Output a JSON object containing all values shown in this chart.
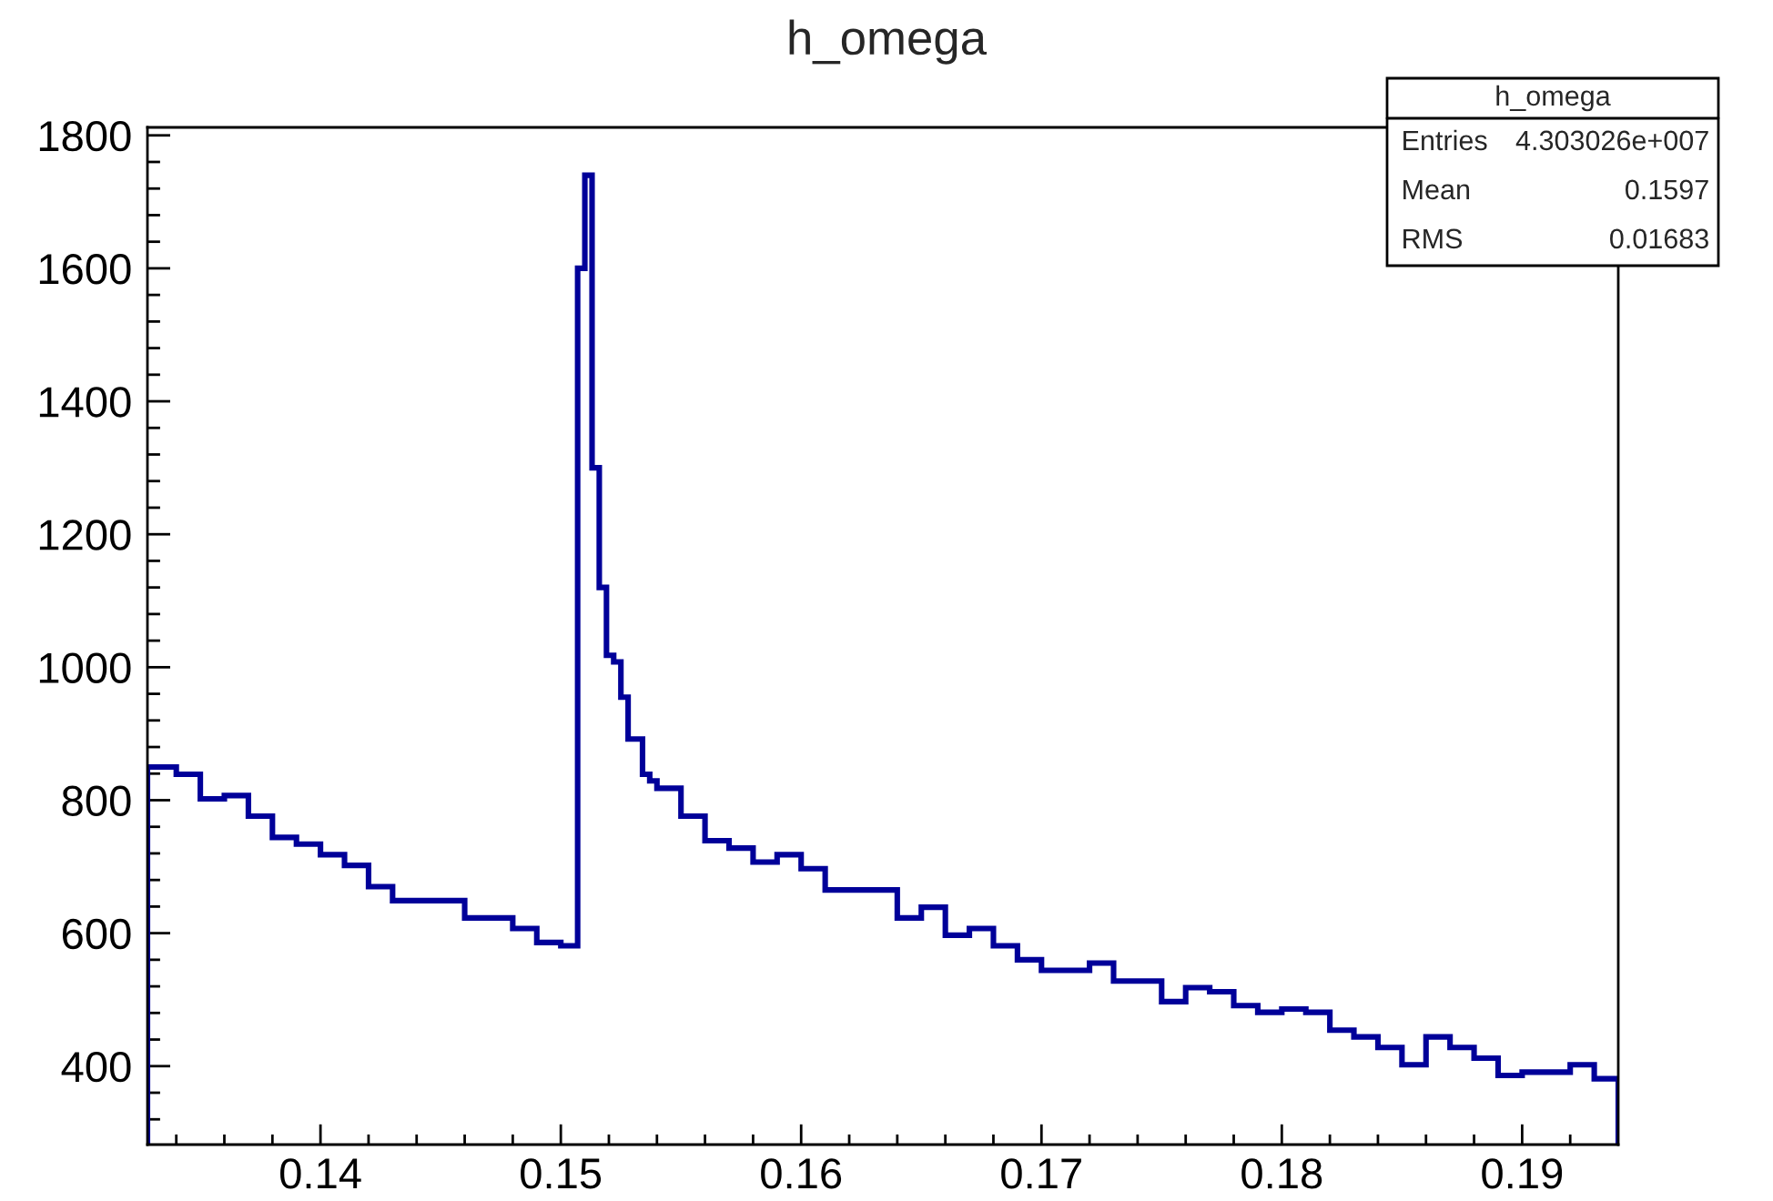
{
  "chart_data": {
    "type": "histogram",
    "title": "h_omega",
    "bins": [
      0.1328,
      0.134,
      0.135,
      0.136,
      0.137,
      0.138,
      0.139,
      0.14,
      0.141,
      0.142,
      0.143,
      0.144,
      0.145,
      0.146,
      0.147,
      0.148,
      0.149,
      0.15,
      0.1507,
      0.151,
      0.1513,
      0.1516,
      0.1519,
      0.1522,
      0.1525,
      0.1528,
      0.1531,
      0.1534,
      0.1537,
      0.154,
      0.155,
      0.156,
      0.157,
      0.158,
      0.159,
      0.16,
      0.161,
      0.162,
      0.163,
      0.164,
      0.165,
      0.166,
      0.167,
      0.168,
      0.169,
      0.17,
      0.171,
      0.172,
      0.173,
      0.174,
      0.175,
      0.176,
      0.177,
      0.178,
      0.179,
      0.18,
      0.181,
      0.182,
      0.183,
      0.184,
      0.185,
      0.186,
      0.187,
      0.188,
      0.189,
      0.19,
      0.191,
      0.192,
      0.193,
      0.194
    ],
    "values": [
      850,
      839,
      802,
      807,
      776,
      744,
      734,
      718,
      702,
      670,
      649,
      649,
      649,
      623,
      623,
      607,
      586,
      581,
      1600,
      1740,
      1300,
      1120,
      1018,
      1008,
      955,
      892,
      892,
      839,
      829,
      818,
      776,
      739,
      728,
      707,
      718,
      697,
      665,
      665,
      665,
      623,
      639,
      597,
      607,
      581,
      560,
      544,
      544,
      555,
      528,
      528,
      497,
      518,
      512,
      491,
      481,
      486,
      481,
      454,
      444,
      428,
      402,
      444,
      428,
      412,
      386,
      391,
      391,
      402,
      381
    ],
    "color": "#000099",
    "xlim": [
      0.1328,
      0.194
    ],
    "ylim": [
      282,
      1812
    ],
    "xticks": [
      {
        "value": 0.134,
        "label": null
      },
      {
        "value": 0.136,
        "label": null
      },
      {
        "value": 0.138,
        "label": null
      },
      0.14,
      {
        "value": 0.142,
        "label": null
      },
      {
        "value": 0.144,
        "label": null
      },
      {
        "value": 0.146,
        "label": null
      },
      {
        "value": 0.148,
        "label": null
      },
      0.15,
      {
        "value": 0.152,
        "label": null
      },
      {
        "value": 0.154,
        "label": null
      },
      {
        "value": 0.156,
        "label": null
      },
      {
        "value": 0.158,
        "label": null
      },
      0.16,
      {
        "value": 0.162,
        "label": null
      },
      {
        "value": 0.164,
        "label": null
      },
      {
        "value": 0.166,
        "label": null
      },
      {
        "value": 0.168,
        "label": null
      },
      0.17,
      {
        "value": 0.172,
        "label": null
      },
      {
        "value": 0.174,
        "label": null
      },
      {
        "value": 0.176,
        "label": null
      },
      {
        "value": 0.178,
        "label": null
      },
      0.18,
      {
        "value": 0.182,
        "label": null
      },
      {
        "value": 0.184,
        "label": null
      },
      {
        "value": 0.186,
        "label": null
      },
      {
        "value": 0.188,
        "label": null
      },
      0.19,
      {
        "value": 0.192,
        "label": null
      }
    ],
    "yticks": [
      {
        "value": 320,
        "label": null
      },
      {
        "value": 360,
        "label": null
      },
      400,
      {
        "value": 440,
        "label": null
      },
      {
        "value": 480,
        "label": null
      },
      {
        "value": 520,
        "label": null
      },
      {
        "value": 560,
        "label": null
      },
      600,
      {
        "value": 640,
        "label": null
      },
      {
        "value": 680,
        "label": null
      },
      {
        "value": 720,
        "label": null
      },
      {
        "value": 760,
        "label": null
      },
      800,
      {
        "value": 840,
        "label": null
      },
      {
        "value": 880,
        "label": null
      },
      {
        "value": 920,
        "label": null
      },
      {
        "value": 960,
        "label": null
      },
      1000,
      {
        "value": 1040,
        "label": null
      },
      {
        "value": 1080,
        "label": null
      },
      {
        "value": 1120,
        "label": null
      },
      {
        "value": 1160,
        "label": null
      },
      1200,
      {
        "value": 1240,
        "label": null
      },
      {
        "value": 1280,
        "label": null
      },
      {
        "value": 1320,
        "label": null
      },
      {
        "value": 1360,
        "label": null
      },
      1400,
      {
        "value": 1440,
        "label": null
      },
      {
        "value": 1480,
        "label": null
      },
      {
        "value": 1520,
        "label": null
      },
      {
        "value": 1560,
        "label": null
      },
      1600,
      {
        "value": 1640,
        "label": null
      },
      {
        "value": 1680,
        "label": null
      },
      {
        "value": 1720,
        "label": null
      },
      {
        "value": 1760,
        "label": null
      },
      1800
    ],
    "grid": false,
    "annotations": [
      "h_omega",
      "Entries",
      "4.303026e+007",
      "Mean",
      "0.1597",
      "RMS",
      "0.01683"
    ]
  }
}
